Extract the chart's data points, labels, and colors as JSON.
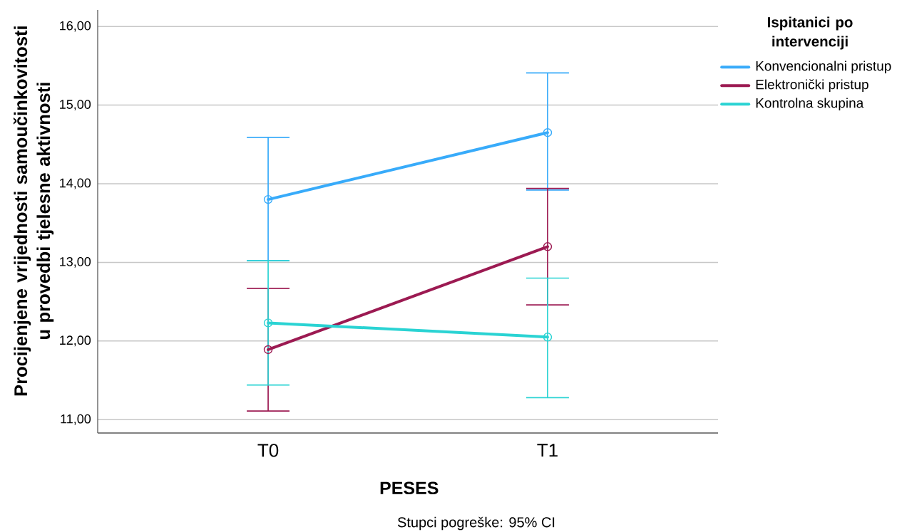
{
  "chart_data": {
    "type": "line",
    "xlabel": "PESES",
    "ylabel": "Procijenjene vrijednosti samoučinkovitosti u provedbi tjelesne aktivnosti",
    "legend_title": "Ispitanici po intervenciji",
    "annotations": [
      "Stupci pogreške: 95% CI"
    ],
    "categories": [
      "T0",
      "T1"
    ],
    "series": [
      {
        "name": "Konvencionalni pristup",
        "color": "#38abfa",
        "values": [
          13.8,
          14.65
        ],
        "errors": [
          [
            13.02,
            14.59
          ],
          [
            13.92,
            15.41
          ]
        ]
      },
      {
        "name": "Elektronički pristup",
        "color": "#9c1a52",
        "values": [
          11.89,
          13.2
        ],
        "errors": [
          [
            11.11,
            12.67
          ],
          [
            12.46,
            13.94
          ]
        ]
      },
      {
        "name": "Kontrolna skupina",
        "color": "#2ad3d3",
        "values": [
          12.23,
          12.05
        ],
        "errors": [
          [
            11.44,
            13.02
          ],
          [
            11.28,
            12.8
          ]
        ]
      }
    ],
    "ylim": [
      10.83,
      16.21
    ],
    "yticks": [
      {
        "value": 11,
        "label": "11,00"
      },
      {
        "value": 12,
        "label": "12,00"
      },
      {
        "value": 13,
        "label": "13,00"
      },
      {
        "value": 14,
        "label": "14,00"
      },
      {
        "value": 15,
        "label": "15,00"
      },
      {
        "value": 16,
        "label": "16,00"
      }
    ],
    "grid": "y",
    "legend": "right",
    "marker": "circle",
    "line_style": "solid"
  }
}
